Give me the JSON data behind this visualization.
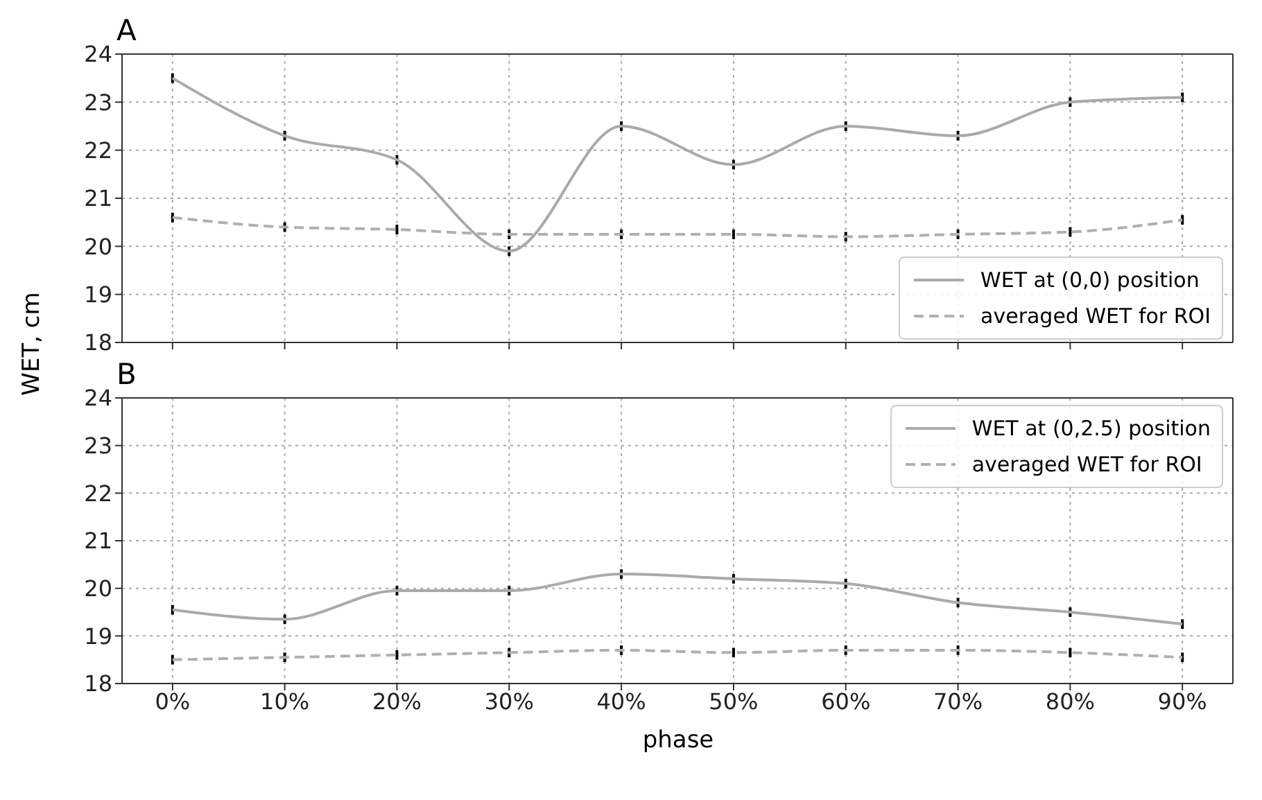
{
  "chart_data": [
    {
      "type": "line",
      "title": "A",
      "ylabel": "WET, cm",
      "categories": [
        null,
        null,
        null,
        null,
        null,
        null,
        null,
        null,
        null,
        null
      ],
      "series": [
        {
          "name": "WET at (0,0) position",
          "color": "#aaaaaa",
          "line_style": "solid",
          "values": [
            23.5,
            22.3,
            21.8,
            19.9,
            22.5,
            21.7,
            22.5,
            22.3,
            23.0,
            23.1
          ],
          "errors": [
            0.1,
            0.1,
            0.1,
            0.1,
            0.1,
            0.1,
            0.1,
            0.1,
            0.1,
            0.1
          ]
        },
        {
          "name": "averaged WET for ROI",
          "color": "#b0b0b0",
          "line_style": "dashed",
          "values": [
            20.6,
            20.4,
            20.35,
            20.25,
            20.25,
            20.25,
            20.2,
            20.25,
            20.3,
            20.55
          ],
          "errors": [
            0.1,
            0.1,
            0.1,
            0.1,
            0.1,
            0.1,
            0.1,
            0.1,
            0.1,
            0.1
          ]
        }
      ],
      "ylim": [
        18,
        24
      ],
      "yticks": [
        18,
        19,
        20,
        21,
        22,
        23,
        24
      ],
      "grid": true,
      "legend": "bottom right",
      "tick_labels": "y",
      "marker": "none"
    },
    {
      "type": "line",
      "title": "B",
      "xlabel": "phase",
      "categories": [
        "0%",
        "10%",
        "20%",
        "30%",
        "40%",
        "50%",
        "60%",
        "70%",
        "80%",
        "90%"
      ],
      "series": [
        {
          "name": "WET at (0,2.5) position",
          "color": "#aaaaaa",
          "line_style": "solid",
          "values": [
            19.55,
            19.35,
            19.95,
            19.95,
            20.3,
            20.2,
            20.1,
            19.7,
            19.5,
            19.25
          ],
          "errors": [
            0.1,
            0.1,
            0.1,
            0.1,
            0.1,
            0.1,
            0.1,
            0.1,
            0.1,
            0.1
          ]
        },
        {
          "name": "averaged WET for ROI",
          "color": "#b0b0b0",
          "line_style": "dashed",
          "values": [
            18.5,
            18.55,
            18.6,
            18.65,
            18.7,
            18.65,
            18.7,
            18.7,
            18.65,
            18.55
          ],
          "errors": [
            0.1,
            0.1,
            0.1,
            0.1,
            0.1,
            0.1,
            0.1,
            0.1,
            0.1,
            0.1
          ]
        }
      ],
      "ylim": [
        18,
        24
      ],
      "yticks": [
        18,
        19,
        20,
        21,
        22,
        23,
        24
      ],
      "grid": true,
      "legend": "top right",
      "marker": "none"
    }
  ]
}
